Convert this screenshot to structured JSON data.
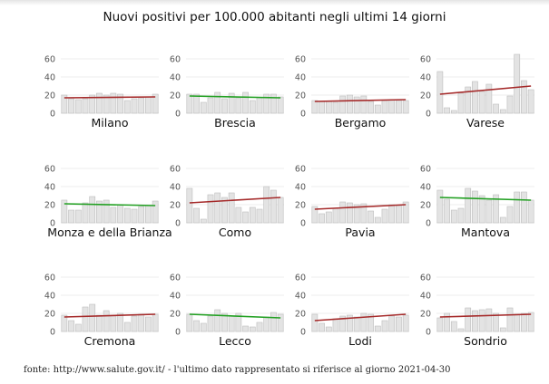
{
  "title": "Nuovi positivi per 100.000 abitanti negli ultimi 14 giorni",
  "source_note": "fonte: http://www.salute.gov.it/ - l'ultimo dato rappresentato si riferisce al giorno 2021-04-30",
  "colors": {
    "bar_fill": "#e3e3e3",
    "bar_stroke": "#bdbdbd",
    "grid": "#e6e6e6",
    "trend_up": "#a52a2a",
    "trend_down": "#22a022"
  },
  "chart_data": [
    {
      "type": "bar",
      "title": "Milano",
      "ylim": [
        0,
        60
      ],
      "yticks": [
        0,
        20,
        40,
        60
      ],
      "values": [
        20,
        16,
        15,
        16,
        20,
        22,
        20,
        22,
        21,
        14,
        16,
        17,
        18,
        21
      ],
      "trend": {
        "start": 17,
        "end": 18,
        "direction": "up"
      }
    },
    {
      "type": "bar",
      "title": "Brescia",
      "ylim": [
        0,
        60
      ],
      "yticks": [
        0,
        20,
        40,
        60
      ],
      "values": [
        21,
        21,
        12,
        17,
        23,
        16,
        22,
        17,
        23,
        14,
        17,
        21,
        21,
        18
      ],
      "trend": {
        "start": 19,
        "end": 17,
        "direction": "down"
      }
    },
    {
      "type": "bar",
      "title": "Bergamo",
      "ylim": [
        0,
        60
      ],
      "yticks": [
        0,
        20,
        40,
        60
      ],
      "values": [
        14,
        13,
        13,
        12,
        19,
        20,
        18,
        19,
        13,
        9,
        14,
        15,
        14,
        14
      ],
      "trend": {
        "start": 13,
        "end": 15,
        "direction": "up"
      }
    },
    {
      "type": "bar",
      "title": "Varese",
      "ylim": [
        0,
        60
      ],
      "yticks": [
        0,
        20,
        40,
        60
      ],
      "values": [
        46,
        6,
        3,
        22,
        29,
        35,
        24,
        32,
        10,
        4,
        19,
        65,
        36,
        26
      ],
      "trend": {
        "start": 21,
        "end": 30,
        "direction": "up"
      }
    },
    {
      "type": "bar",
      "title": "Monza e della Brianza",
      "ylim": [
        0,
        60
      ],
      "yticks": [
        0,
        20,
        40,
        60
      ],
      "values": [
        25,
        14,
        14,
        22,
        29,
        24,
        25,
        17,
        20,
        16,
        15,
        18,
        19,
        24
      ],
      "trend": {
        "start": 21,
        "end": 19,
        "direction": "down"
      }
    },
    {
      "type": "bar",
      "title": "Como",
      "ylim": [
        0,
        60
      ],
      "yticks": [
        0,
        20,
        40,
        60
      ],
      "values": [
        38,
        16,
        4,
        31,
        33,
        28,
        33,
        17,
        12,
        17,
        15,
        40,
        36,
        28
      ],
      "trend": {
        "start": 22,
        "end": 28,
        "direction": "up"
      }
    },
    {
      "type": "bar",
      "title": "Pavia",
      "ylim": [
        0,
        60
      ],
      "yticks": [
        0,
        20,
        40,
        60
      ],
      "values": [
        18,
        10,
        12,
        16,
        23,
        22,
        20,
        21,
        13,
        6,
        15,
        20,
        19,
        23
      ],
      "trend": {
        "start": 15,
        "end": 20,
        "direction": "up"
      }
    },
    {
      "type": "bar",
      "title": "Mantova",
      "ylim": [
        0,
        60
      ],
      "yticks": [
        0,
        20,
        40,
        60
      ],
      "values": [
        36,
        26,
        14,
        16,
        38,
        35,
        30,
        25,
        31,
        6,
        18,
        34,
        34,
        25
      ],
      "trend": {
        "start": 28,
        "end": 25,
        "direction": "down"
      }
    },
    {
      "type": "bar",
      "title": "Cremona",
      "ylim": [
        0,
        60
      ],
      "yticks": [
        0,
        20,
        40,
        60
      ],
      "values": [
        18,
        12,
        8,
        27,
        30,
        18,
        23,
        18,
        20,
        10,
        17,
        19,
        16,
        19
      ],
      "trend": {
        "start": 16,
        "end": 19,
        "direction": "up"
      }
    },
    {
      "type": "bar",
      "title": "Lecco",
      "ylim": [
        0,
        60
      ],
      "yticks": [
        0,
        20,
        40,
        60
      ],
      "values": [
        19,
        12,
        9,
        17,
        24,
        20,
        17,
        20,
        6,
        5,
        10,
        16,
        21,
        19
      ],
      "trend": {
        "start": 19,
        "end": 15,
        "direction": "down"
      }
    },
    {
      "type": "bar",
      "title": "Lodi",
      "ylim": [
        0,
        60
      ],
      "yticks": [
        0,
        20,
        40,
        60
      ],
      "values": [
        19,
        9,
        5,
        14,
        17,
        18,
        16,
        20,
        19,
        6,
        12,
        17,
        16,
        18
      ],
      "trend": {
        "start": 12,
        "end": 19,
        "direction": "up"
      }
    },
    {
      "type": "bar",
      "title": "Sondrio",
      "ylim": [
        0,
        60
      ],
      "yticks": [
        0,
        20,
        40,
        60
      ],
      "values": [
        15,
        20,
        11,
        3,
        26,
        23,
        24,
        25,
        20,
        4,
        26,
        19,
        20,
        21
      ],
      "trend": {
        "start": 16,
        "end": 19,
        "direction": "up"
      }
    }
  ]
}
